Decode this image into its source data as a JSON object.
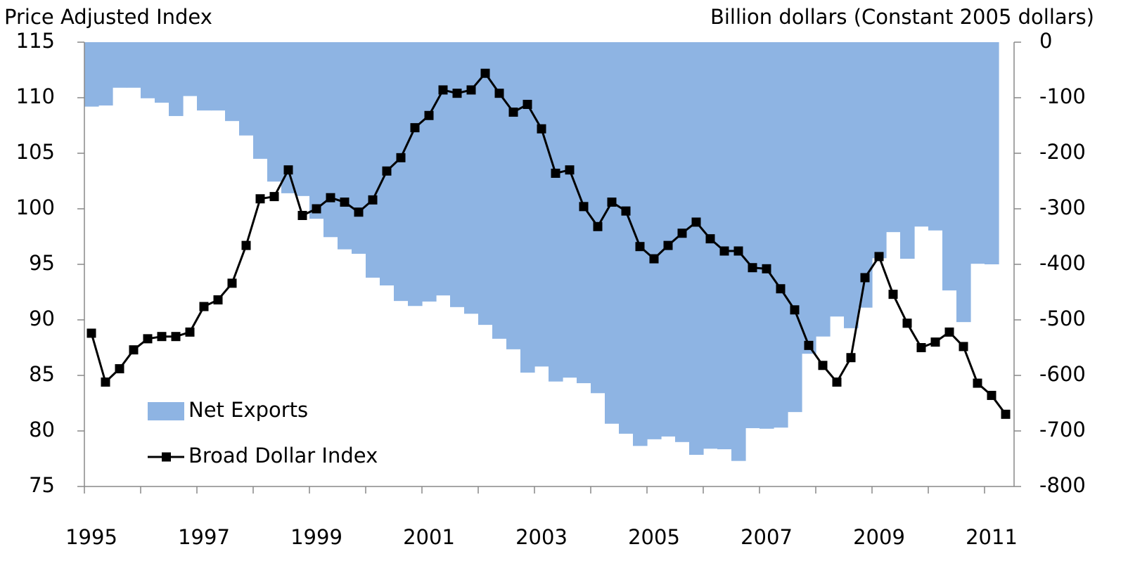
{
  "chart_data": {
    "type": "line-area",
    "y_label": "Price Adjusted Index",
    "y2_label": "Billion dollars (Constant 2005 dollars)",
    "x": [
      1995.125,
      1995.375,
      1995.625,
      1995.875,
      1996.125,
      1996.375,
      1996.625,
      1996.875,
      1997.125,
      1997.375,
      1997.625,
      1997.875,
      1998.125,
      1998.375,
      1998.625,
      1998.875,
      1999.125,
      1999.375,
      1999.625,
      1999.875,
      2000.125,
      2000.375,
      2000.625,
      2000.875,
      2001.125,
      2001.375,
      2001.625,
      2001.875,
      2002.125,
      2002.375,
      2002.625,
      2002.875,
      2003.125,
      2003.375,
      2003.625,
      2003.875,
      2004.125,
      2004.375,
      2004.625,
      2004.875,
      2005.125,
      2005.375,
      2005.625,
      2005.875,
      2006.125,
      2006.375,
      2006.625,
      2006.875,
      2007.125,
      2007.375,
      2007.625,
      2007.875,
      2008.125,
      2008.375,
      2008.625,
      2008.875,
      2009.125,
      2009.375,
      2009.625,
      2009.875,
      2010.125,
      2010.375,
      2010.625,
      2010.875,
      2011.125,
      2011.375
    ],
    "series": [
      {
        "name": "Net Exports",
        "kind": "area",
        "axis": "y2",
        "color": "#8eb4e3",
        "values": [
          -116,
          -114,
          -82,
          -82,
          -101,
          -109,
          -133,
          -97,
          -123,
          -123,
          -142,
          -168,
          -210,
          -251,
          -272,
          -277,
          -318,
          -351,
          -373,
          -381,
          -424,
          -438,
          -466,
          -475,
          -467,
          -456,
          -477,
          -489,
          -509,
          -534,
          -553,
          -595,
          -584,
          -611,
          -604,
          -614,
          -632,
          -687,
          -705,
          -727,
          -715,
          -710,
          -720,
          -743,
          -732,
          -733,
          -754,
          -695,
          -696,
          -694,
          -666,
          -561,
          -530,
          -494,
          -515,
          -478,
          -389,
          -342,
          -390,
          -332,
          -339,
          -447,
          -504,
          -399,
          -400,
          null
        ]
      },
      {
        "name": "Broad Dollar Index",
        "kind": "line",
        "axis": "y",
        "color": "#000000",
        "values": [
          88.8,
          84.4,
          85.6,
          87.3,
          88.3,
          88.5,
          88.5,
          88.9,
          91.2,
          91.8,
          93.3,
          96.7,
          100.9,
          101.1,
          103.5,
          99.4,
          100.0,
          101.0,
          100.6,
          99.7,
          100.8,
          103.4,
          104.6,
          107.3,
          108.4,
          110.7,
          110.4,
          110.7,
          112.2,
          110.4,
          108.7,
          109.4,
          107.2,
          103.2,
          103.5,
          100.2,
          98.4,
          100.6,
          99.8,
          96.6,
          95.5,
          96.7,
          97.8,
          98.8,
          97.3,
          96.2,
          96.2,
          94.7,
          94.6,
          92.8,
          90.9,
          87.7,
          85.9,
          84.4,
          86.6,
          93.8,
          95.7,
          92.3,
          89.7,
          87.5,
          88.0,
          88.9,
          87.6,
          84.3,
          83.2,
          81.5
        ]
      }
    ],
    "xlim": [
      1995,
      2011.5
    ],
    "xticks": [
      1995,
      1997,
      1999,
      2001,
      2003,
      2005,
      2007,
      2009,
      2011
    ],
    "xminor_ticks": [
      1996,
      1998,
      2000,
      2002,
      2004,
      2006,
      2008,
      2010
    ],
    "ylim": [
      75,
      115
    ],
    "yticks": [
      75,
      80,
      85,
      90,
      95,
      100,
      105,
      110,
      115
    ],
    "y2lim": [
      -800,
      0
    ],
    "y2ticks": [
      -800,
      -700,
      -600,
      -500,
      -400,
      -300,
      -200,
      -100,
      0
    ],
    "legend": "lower left"
  }
}
